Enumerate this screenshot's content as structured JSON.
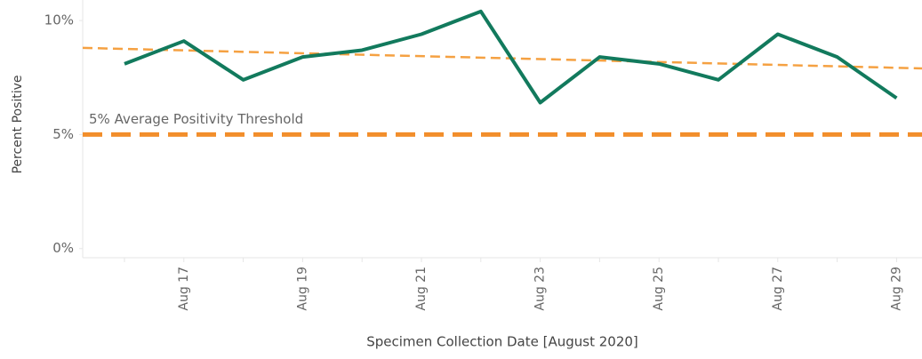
{
  "chart_data": {
    "type": "line",
    "x_label": "Specimen Collection Date [August 2020]",
    "y_label": "Percent Positive",
    "categories": [
      null,
      "Aug 17",
      null,
      "Aug 19",
      null,
      "Aug 21",
      null,
      "Aug 23",
      null,
      "Aug 25",
      null,
      "Aug 27",
      null,
      "Aug 29"
    ],
    "series": [
      {
        "color": "#127a5d",
        "values": [
          8.1,
          9.1,
          7.4,
          8.4,
          8.7,
          9.4,
          10.4,
          6.4,
          8.4,
          8.1,
          7.4,
          9.4,
          8.4,
          6.6
        ]
      }
    ],
    "trend_line": {
      "color": "#f5a142",
      "values": [
        8.8,
        7.9
      ]
    },
    "threshold": {
      "value": 5,
      "label": "5% Average Positivity Threshold",
      "color": "#f28e2b"
    },
    "ylim": [
      -0.4,
      10.9
    ],
    "yticks": [
      {
        "value": 0,
        "label": "0%"
      },
      {
        "value": 5,
        "label": "5%"
      },
      {
        "value": 10,
        "label": "10%"
      }
    ],
    "grid": false
  }
}
